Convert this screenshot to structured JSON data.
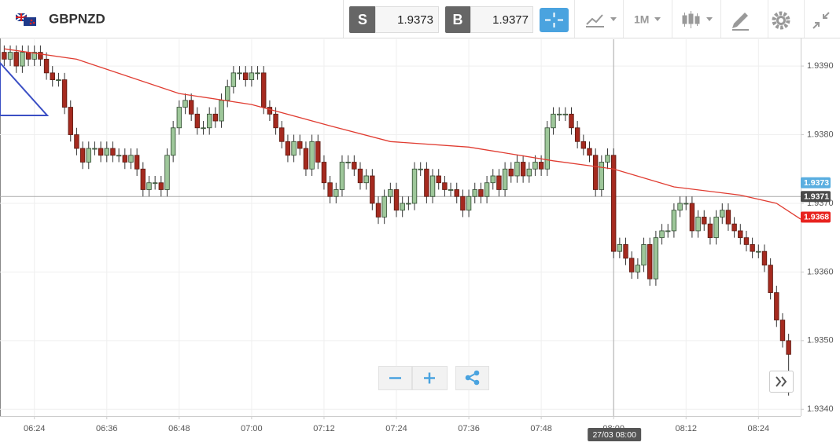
{
  "toolbar": {
    "symbol": "GBPNZD",
    "sell": {
      "label": "S",
      "price": "1.9373"
    },
    "buy": {
      "label": "B",
      "price": "1.9377"
    },
    "timeframe": "1M"
  },
  "chart_data": {
    "type": "candlestick",
    "up_color": "#9ec79a",
    "down_color": "#a52a1f",
    "xlim": [
      378.3,
      511
    ],
    "ylim": [
      1.9339,
      1.93939
    ],
    "grid": true,
    "xticks": [
      {
        "value": 384,
        "label": "06:24"
      },
      {
        "value": 396,
        "label": "06:36"
      },
      {
        "value": 408,
        "label": "06:48"
      },
      {
        "value": 420,
        "label": "07:00"
      },
      {
        "value": 432,
        "label": "07:12"
      },
      {
        "value": 444,
        "label": "07:24"
      },
      {
        "value": 456,
        "label": "07:36"
      },
      {
        "value": 468,
        "label": "07:48"
      },
      {
        "value": 480,
        "label": "08:00"
      },
      {
        "value": 492,
        "label": "08:12"
      },
      {
        "value": 504,
        "label": "08:24"
      }
    ],
    "yticks": [
      {
        "value": 1.934,
        "label": "1.9340"
      },
      {
        "value": 1.935,
        "label": "1.9350"
      },
      {
        "value": 1.936,
        "label": "1.9360"
      },
      {
        "value": 1.937,
        "label": "1.9370"
      },
      {
        "value": 1.938,
        "label": "1.9380"
      },
      {
        "value": 1.939,
        "label": "1.9390"
      }
    ],
    "x": [
      379,
      380,
      381,
      382,
      383,
      384,
      385,
      386,
      387,
      388,
      389,
      390,
      391,
      392,
      393,
      394,
      395,
      396,
      397,
      398,
      399,
      400,
      401,
      402,
      403,
      404,
      405,
      406,
      407,
      408,
      409,
      410,
      411,
      412,
      413,
      414,
      415,
      416,
      417,
      418,
      419,
      420,
      421,
      422,
      423,
      424,
      425,
      426,
      427,
      428,
      429,
      430,
      431,
      432,
      433,
      434,
      435,
      436,
      437,
      438,
      439,
      440,
      441,
      442,
      443,
      444,
      445,
      446,
      447,
      448,
      449,
      450,
      451,
      452,
      453,
      454,
      455,
      456,
      457,
      458,
      459,
      460,
      461,
      462,
      463,
      464,
      465,
      466,
      467,
      468,
      469,
      470,
      471,
      472,
      473,
      474,
      475,
      476,
      477,
      478,
      479,
      480,
      481,
      482,
      483,
      484,
      485,
      486,
      487,
      488,
      489,
      490,
      491,
      492,
      493,
      494,
      495,
      496,
      497,
      498,
      499,
      500,
      501,
      502,
      503,
      504,
      505,
      506,
      507,
      508,
      509
    ],
    "ohlc": [
      [
        1.9392,
        1.9393,
        1.939,
        1.9391
      ],
      [
        1.9391,
        1.9393,
        1.939,
        1.9392
      ],
      [
        1.9392,
        1.9393,
        1.9389,
        1.939
      ],
      [
        1.939,
        1.9393,
        1.9389,
        1.9392
      ],
      [
        1.9392,
        1.9393,
        1.939,
        1.9391
      ],
      [
        1.9391,
        1.9393,
        1.939,
        1.9392
      ],
      [
        1.9392,
        1.9393,
        1.939,
        1.9391
      ],
      [
        1.9391,
        1.9392,
        1.9388,
        1.9389
      ],
      [
        1.9389,
        1.939,
        1.9387,
        1.9388
      ],
      [
        1.9388,
        1.9389,
        1.9387,
        1.9388
      ],
      [
        1.9388,
        1.9389,
        1.9383,
        1.9384
      ],
      [
        1.9384,
        1.9385,
        1.9379,
        1.938
      ],
      [
        1.938,
        1.9381,
        1.9377,
        1.9378
      ],
      [
        1.9378,
        1.9379,
        1.9375,
        1.9376
      ],
      [
        1.9376,
        1.9379,
        1.9375,
        1.9378
      ],
      [
        1.9378,
        1.9379,
        1.9377,
        1.9378
      ],
      [
        1.9378,
        1.9379,
        1.9376,
        1.9377
      ],
      [
        1.9377,
        1.9379,
        1.9376,
        1.9378
      ],
      [
        1.9378,
        1.9379,
        1.9376,
        1.9377
      ],
      [
        1.9377,
        1.9378,
        1.9376,
        1.9377
      ],
      [
        1.9377,
        1.9378,
        1.9375,
        1.9376
      ],
      [
        1.9376,
        1.9378,
        1.9375,
        1.9377
      ],
      [
        1.9377,
        1.9378,
        1.9374,
        1.9375
      ],
      [
        1.9375,
        1.9376,
        1.9371,
        1.9372
      ],
      [
        1.9372,
        1.9374,
        1.9371,
        1.9373
      ],
      [
        1.9373,
        1.9374,
        1.9372,
        1.9373
      ],
      [
        1.9373,
        1.9374,
        1.9371,
        1.9372
      ],
      [
        1.9372,
        1.9378,
        1.9371,
        1.9377
      ],
      [
        1.9377,
        1.9382,
        1.9376,
        1.9381
      ],
      [
        1.9381,
        1.9385,
        1.938,
        1.9384
      ],
      [
        1.9384,
        1.9386,
        1.9383,
        1.9385
      ],
      [
        1.9385,
        1.9386,
        1.9382,
        1.9383
      ],
      [
        1.9383,
        1.9384,
        1.938,
        1.9381
      ],
      [
        1.9381,
        1.9382,
        1.938,
        1.9381
      ],
      [
        1.9381,
        1.9384,
        1.938,
        1.9383
      ],
      [
        1.9383,
        1.9384,
        1.9381,
        1.9382
      ],
      [
        1.9382,
        1.9386,
        1.9381,
        1.9385
      ],
      [
        1.9385,
        1.9388,
        1.9384,
        1.9387
      ],
      [
        1.9387,
        1.939,
        1.9386,
        1.9389
      ],
      [
        1.9389,
        1.939,
        1.9388,
        1.9389
      ],
      [
        1.9389,
        1.939,
        1.9387,
        1.9388
      ],
      [
        1.9388,
        1.939,
        1.9387,
        1.9389
      ],
      [
        1.9389,
        1.939,
        1.9388,
        1.9389
      ],
      [
        1.9389,
        1.939,
        1.9383,
        1.9384
      ],
      [
        1.9384,
        1.9385,
        1.9382,
        1.9383
      ],
      [
        1.9383,
        1.9384,
        1.938,
        1.9381
      ],
      [
        1.9381,
        1.9382,
        1.9378,
        1.9379
      ],
      [
        1.9379,
        1.938,
        1.9376,
        1.9377
      ],
      [
        1.9377,
        1.938,
        1.9376,
        1.9379
      ],
      [
        1.9379,
        1.938,
        1.9377,
        1.9378
      ],
      [
        1.9378,
        1.9379,
        1.9374,
        1.9375
      ],
      [
        1.9375,
        1.938,
        1.9374,
        1.9379
      ],
      [
        1.9379,
        1.938,
        1.9375,
        1.9376
      ],
      [
        1.9376,
        1.9377,
        1.9372,
        1.9373
      ],
      [
        1.9373,
        1.9374,
        1.937,
        1.9371
      ],
      [
        1.9371,
        1.9373,
        1.937,
        1.9372
      ],
      [
        1.9372,
        1.9377,
        1.9371,
        1.9376
      ],
      [
        1.9376,
        1.9377,
        1.9375,
        1.9376
      ],
      [
        1.9376,
        1.9377,
        1.9374,
        1.9375
      ],
      [
        1.9375,
        1.9376,
        1.9372,
        1.9373
      ],
      [
        1.9373,
        1.9375,
        1.9372,
        1.9374
      ],
      [
        1.9374,
        1.9375,
        1.9369,
        1.937
      ],
      [
        1.937,
        1.9371,
        1.9367,
        1.9368
      ],
      [
        1.9368,
        1.9372,
        1.9367,
        1.9371
      ],
      [
        1.9371,
        1.9373,
        1.937,
        1.9372
      ],
      [
        1.9372,
        1.9373,
        1.9368,
        1.9369
      ],
      [
        1.9369,
        1.9371,
        1.9368,
        1.937
      ],
      [
        1.937,
        1.9371,
        1.9369,
        1.937
      ],
      [
        1.937,
        1.9376,
        1.9369,
        1.9375
      ],
      [
        1.9375,
        1.9376,
        1.9374,
        1.9375
      ],
      [
        1.9375,
        1.9376,
        1.937,
        1.9371
      ],
      [
        1.9371,
        1.9375,
        1.937,
        1.9374
      ],
      [
        1.9374,
        1.9375,
        1.9372,
        1.9373
      ],
      [
        1.9373,
        1.9374,
        1.9371,
        1.9372
      ],
      [
        1.9372,
        1.9373,
        1.9371,
        1.9372
      ],
      [
        1.9372,
        1.9373,
        1.937,
        1.9371
      ],
      [
        1.9371,
        1.9372,
        1.9368,
        1.9369
      ],
      [
        1.9369,
        1.9372,
        1.9368,
        1.9371
      ],
      [
        1.9371,
        1.9373,
        1.937,
        1.9372
      ],
      [
        1.9372,
        1.9373,
        1.937,
        1.9371
      ],
      [
        1.9371,
        1.9374,
        1.937,
        1.9373
      ],
      [
        1.9373,
        1.9375,
        1.9372,
        1.9374
      ],
      [
        1.9374,
        1.9375,
        1.9371,
        1.9372
      ],
      [
        1.9372,
        1.9376,
        1.9371,
        1.9375
      ],
      [
        1.9375,
        1.9376,
        1.9373,
        1.9374
      ],
      [
        1.9374,
        1.9377,
        1.9373,
        1.9376
      ],
      [
        1.9376,
        1.9377,
        1.9373,
        1.9374
      ],
      [
        1.9374,
        1.9376,
        1.9373,
        1.9375
      ],
      [
        1.9375,
        1.9377,
        1.9374,
        1.9376
      ],
      [
        1.9376,
        1.9377,
        1.9374,
        1.9375
      ],
      [
        1.9375,
        1.9382,
        1.9374,
        1.9381
      ],
      [
        1.9381,
        1.9384,
        1.938,
        1.9383
      ],
      [
        1.9383,
        1.9384,
        1.9382,
        1.9383
      ],
      [
        1.9383,
        1.9384,
        1.9382,
        1.9383
      ],
      [
        1.9383,
        1.9384,
        1.938,
        1.9381
      ],
      [
        1.9381,
        1.9382,
        1.9378,
        1.9379
      ],
      [
        1.9379,
        1.938,
        1.9377,
        1.9378
      ],
      [
        1.9378,
        1.9379,
        1.9376,
        1.9377
      ],
      [
        1.9377,
        1.9378,
        1.9371,
        1.9372
      ],
      [
        1.9372,
        1.9377,
        1.9371,
        1.9376
      ],
      [
        1.9376,
        1.9378,
        1.9375,
        1.9377
      ],
      [
        1.9377,
        1.9378,
        1.9362,
        1.9363
      ],
      [
        1.9363,
        1.9365,
        1.9362,
        1.9364
      ],
      [
        1.9364,
        1.9365,
        1.9361,
        1.9362
      ],
      [
        1.9362,
        1.9363,
        1.9359,
        1.936
      ],
      [
        1.936,
        1.9362,
        1.9359,
        1.9361
      ],
      [
        1.9361,
        1.9365,
        1.936,
        1.9364
      ],
      [
        1.9364,
        1.9365,
        1.9358,
        1.9359
      ],
      [
        1.9359,
        1.9366,
        1.9358,
        1.9365
      ],
      [
        1.9365,
        1.9367,
        1.9364,
        1.9366
      ],
      [
        1.9366,
        1.9367,
        1.9365,
        1.9366
      ],
      [
        1.9366,
        1.937,
        1.9365,
        1.9369
      ],
      [
        1.9369,
        1.9371,
        1.9368,
        1.937
      ],
      [
        1.937,
        1.9371,
        1.9369,
        1.937
      ],
      [
        1.937,
        1.9371,
        1.9365,
        1.9366
      ],
      [
        1.9366,
        1.9369,
        1.9365,
        1.9368
      ],
      [
        1.9368,
        1.9369,
        1.9366,
        1.9367
      ],
      [
        1.9367,
        1.9368,
        1.9364,
        1.9365
      ],
      [
        1.9365,
        1.9369,
        1.9364,
        1.9368
      ],
      [
        1.9368,
        1.937,
        1.9367,
        1.9369
      ],
      [
        1.9369,
        1.937,
        1.9366,
        1.9367
      ],
      [
        1.9367,
        1.9368,
        1.9365,
        1.9366
      ],
      [
        1.9366,
        1.9367,
        1.9364,
        1.9365
      ],
      [
        1.9365,
        1.9366,
        1.9363,
        1.9364
      ],
      [
        1.9364,
        1.9365,
        1.9362,
        1.9363
      ],
      [
        1.9363,
        1.9364,
        1.9362,
        1.9363
      ],
      [
        1.9363,
        1.9364,
        1.936,
        1.9361
      ],
      [
        1.9361,
        1.9362,
        1.9356,
        1.9357
      ],
      [
        1.9357,
        1.9358,
        1.9352,
        1.9353
      ],
      [
        1.9353,
        1.9354,
        1.9349,
        1.935
      ],
      [
        1.935,
        1.9351,
        1.9342,
        1.9348
      ]
    ],
    "ma": {
      "color": "#e03c31",
      "x": [
        379,
        391,
        408,
        420,
        433,
        443,
        456,
        470,
        480,
        490,
        501,
        507,
        511
      ],
      "values": [
        1.93925,
        1.9391,
        1.9386,
        1.93844,
        1.93813,
        1.9379,
        1.93782,
        1.93762,
        1.9375,
        1.93724,
        1.93712,
        1.937,
        1.93677
      ]
    },
    "price_markers": [
      {
        "value": 1.9373,
        "label": "1.9373",
        "color": "#5aaee0"
      },
      {
        "value": 1.9371,
        "label": "1.9371",
        "color": "#4a4a4a"
      },
      {
        "value": 1.9368,
        "label": "1.9368",
        "color": "#e8231f"
      }
    ],
    "crosshair": {
      "x": 480,
      "y": 1.9371,
      "label": "27/03 08:00"
    }
  }
}
